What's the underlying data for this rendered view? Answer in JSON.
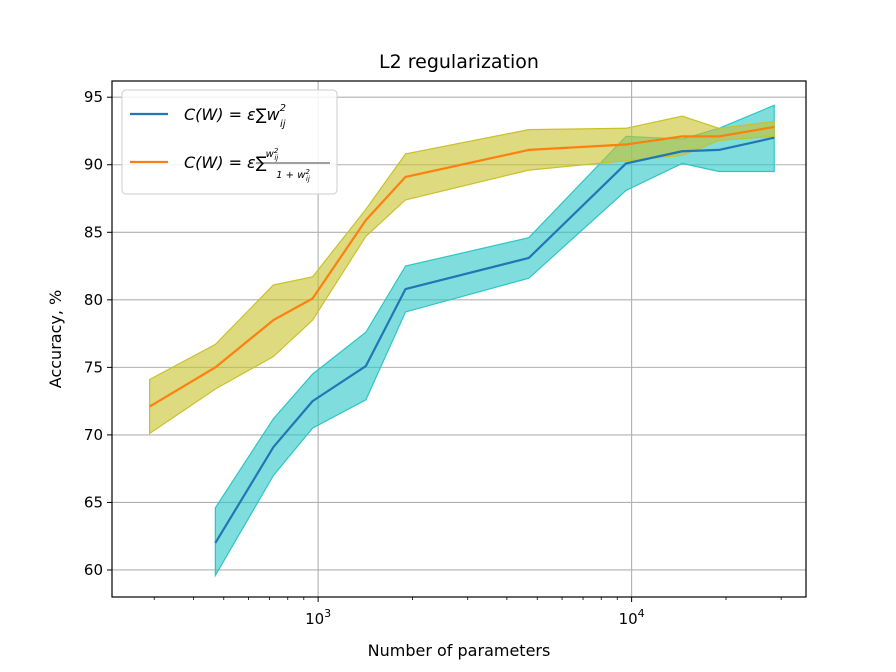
{
  "chart_data": {
    "type": "line",
    "title": "L2 regularization",
    "xlabel": "Number of parameters",
    "ylabel": "Accuracy, %",
    "xscale": "log",
    "xlim": [
      220,
      36000
    ],
    "ylim": [
      58,
      96.2
    ],
    "x_ticks": [
      {
        "value": 1000,
        "base": "10",
        "exp": "3"
      },
      {
        "value": 10000,
        "base": "10",
        "exp": "4"
      }
    ],
    "y_ticks": [
      60,
      65,
      70,
      75,
      80,
      85,
      90,
      95
    ],
    "grid": true,
    "legend_position": "upper-left",
    "series": [
      {
        "name": "C(W) = ε∑w²ij",
        "color": "#1f77b4",
        "band_color": "#2bc6c6",
        "x": [
          470,
          720,
          960,
          1420,
          1900,
          4700,
          9600,
          14500,
          19000,
          28500
        ],
        "y": [
          62.0,
          69.1,
          72.5,
          75.1,
          80.8,
          83.1,
          90.1,
          91.0,
          91.1,
          92.0
        ],
        "lower": [
          59.6,
          67.0,
          70.5,
          72.6,
          79.1,
          81.6,
          88.1,
          90.1,
          89.5,
          89.5
        ],
        "upper": [
          64.6,
          71.2,
          74.5,
          77.6,
          82.5,
          84.6,
          92.1,
          91.9,
          92.7,
          94.4
        ]
      },
      {
        "name": "C(W) = ε∑w²ij/(1+w²ij)",
        "color": "#ff7f0e",
        "band_color": "#c8c22a",
        "x": [
          290,
          470,
          720,
          960,
          1420,
          1900,
          4700,
          9600,
          14500,
          19000,
          28500
        ],
        "y": [
          72.1,
          75.0,
          78.5,
          80.1,
          85.9,
          89.1,
          91.1,
          91.5,
          92.1,
          92.1,
          92.8
        ],
        "lower": [
          70.1,
          73.4,
          75.8,
          78.5,
          84.7,
          87.4,
          89.6,
          90.3,
          90.7,
          91.8,
          92.1
        ],
        "upper": [
          74.1,
          76.7,
          81.1,
          81.7,
          86.7,
          90.8,
          92.6,
          92.7,
          93.6,
          92.7,
          93.2
        ]
      }
    ]
  }
}
